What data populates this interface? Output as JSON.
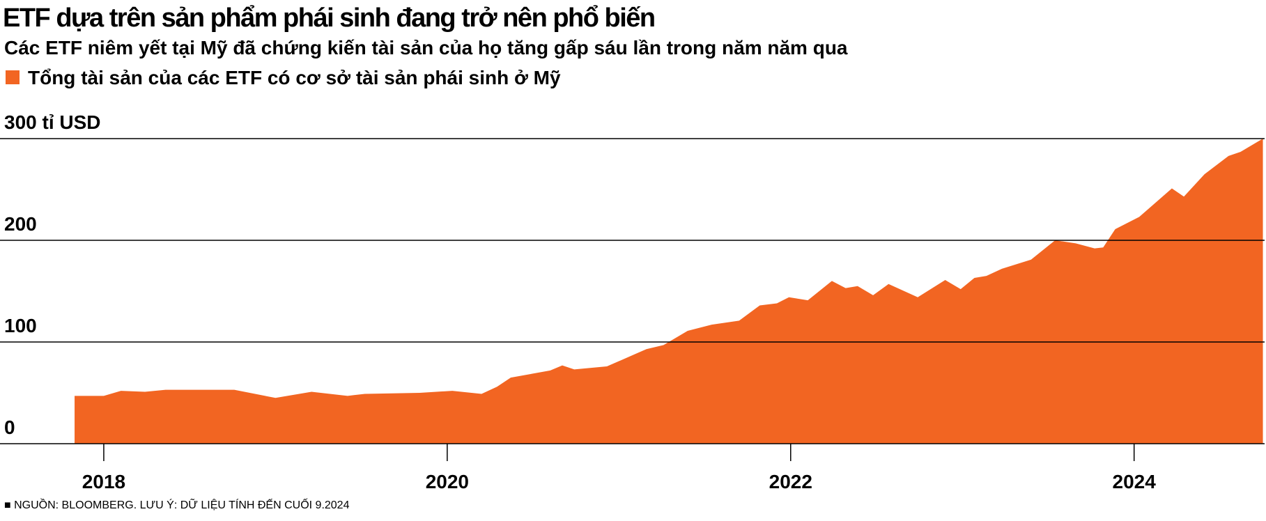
{
  "chart_data": {
    "type": "area",
    "title": "ETF dựa trên sản phẩm phái sinh đang trở nên phổ biến",
    "subtitle": "Các ETF niêm yết tại Mỹ đã chứng kiến tài sản của họ tăng gấp sáu lần trong năm năm qua",
    "source": "■ NGUỒN: BLOOMBERG. LƯU Ý: DỮ LIỆU TÍNH ĐẾN CUỐI 9.2024",
    "x": [
      2017.83,
      2018.0,
      2018.1,
      2018.24,
      2018.36,
      2018.76,
      2019.0,
      2019.21,
      2019.42,
      2019.52,
      2019.84,
      2020.03,
      2020.2,
      2020.29,
      2020.37,
      2020.6,
      2020.67,
      2020.74,
      2020.93,
      2021.16,
      2021.26,
      2021.4,
      2021.54,
      2021.7,
      2021.82,
      2021.92,
      2021.99,
      2022.1,
      2022.24,
      2022.32,
      2022.39,
      2022.48,
      2022.57,
      2022.74,
      2022.9,
      2022.99,
      2023.07,
      2023.14,
      2023.23,
      2023.4,
      2023.54,
      2023.66,
      2023.77,
      2023.82,
      2023.89,
      2024.03,
      2024.22,
      2024.29,
      2024.41,
      2024.55,
      2024.62,
      2024.75
    ],
    "series": [
      {
        "name": "Tổng tài sản của các ETF có cơ sở tài sản phái sinh ở Mỹ",
        "color": "#f26522",
        "values": [
          47,
          47,
          52,
          51,
          53,
          53,
          45,
          51,
          47,
          49,
          50,
          52,
          49,
          56,
          65,
          72,
          77,
          73,
          76,
          93,
          97,
          111,
          117,
          121,
          136,
          138,
          144,
          141,
          160,
          153,
          155,
          146,
          157,
          144,
          161,
          152,
          163,
          165,
          172,
          181,
          200,
          197,
          192,
          193,
          211,
          223,
          251,
          243,
          265,
          283,
          287,
          300
        ]
      }
    ],
    "xlim": [
      2017.42,
      2024.76
    ],
    "xticks": [
      2018,
      2020,
      2022,
      2024
    ],
    "ylim": [
      0,
      300
    ],
    "yticks": [
      0,
      100,
      200,
      {
        "value": 300,
        "label": "300 tỉ USD"
      }
    ],
    "grid": true
  }
}
